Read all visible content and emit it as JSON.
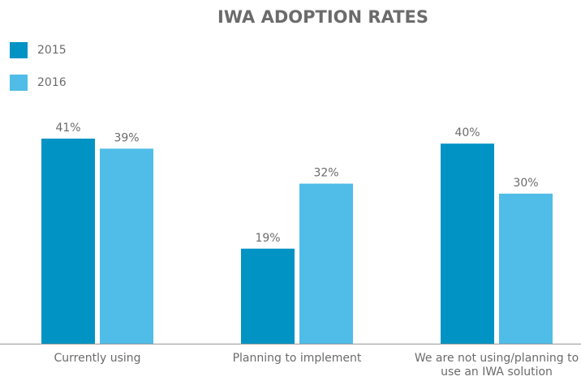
{
  "chart_data": {
    "type": "bar",
    "title": "IWA ADOPTION RATES",
    "categories": [
      "Currently using",
      "Planning to implement",
      "We are not using/planning to use an IWA solution"
    ],
    "series": [
      {
        "name": "2015",
        "color": "#0093c4",
        "values": [
          41,
          19,
          40
        ],
        "value_labels": [
          "41%",
          "19%",
          "40%"
        ]
      },
      {
        "name": "2016",
        "color": "#4fbde7",
        "values": [
          39,
          32,
          30
        ],
        "value_labels": [
          "39%",
          "32%",
          "30%"
        ]
      }
    ]
  }
}
